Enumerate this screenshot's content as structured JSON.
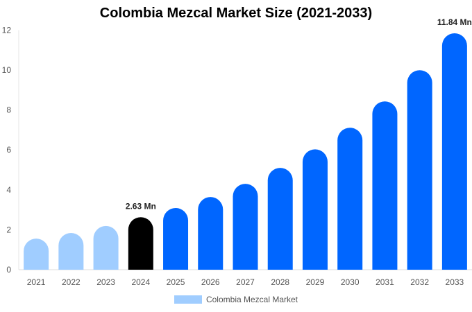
{
  "chart_data": {
    "type": "bar",
    "title": "Colombia Mezcal Market Size (2021-2033)",
    "categories": [
      "2021",
      "2022",
      "2023",
      "2024",
      "2025",
      "2026",
      "2027",
      "2028",
      "2029",
      "2030",
      "2031",
      "2032",
      "2033"
    ],
    "series": [
      {
        "name": "Colombia Mezcal Market",
        "values": [
          1.56,
          1.84,
          2.19,
          2.63,
          3.09,
          3.64,
          4.3,
          5.1,
          6.03,
          7.11,
          8.43,
          9.99,
          11.84
        ]
      }
    ],
    "data_labels": {
      "2024": "2.63 Mn",
      "2033": "11.84 Mn"
    },
    "ylim": [
      0,
      12
    ],
    "yticks": [
      0,
      2,
      4,
      6,
      8,
      10,
      12
    ],
    "xlabel": "",
    "ylabel": "",
    "grid": false,
    "legend_position": "bottom",
    "colors": {
      "historical": "#a0cdff",
      "current": "#000000",
      "forecast": "#0066ff",
      "legend": "#a0cdff"
    }
  }
}
